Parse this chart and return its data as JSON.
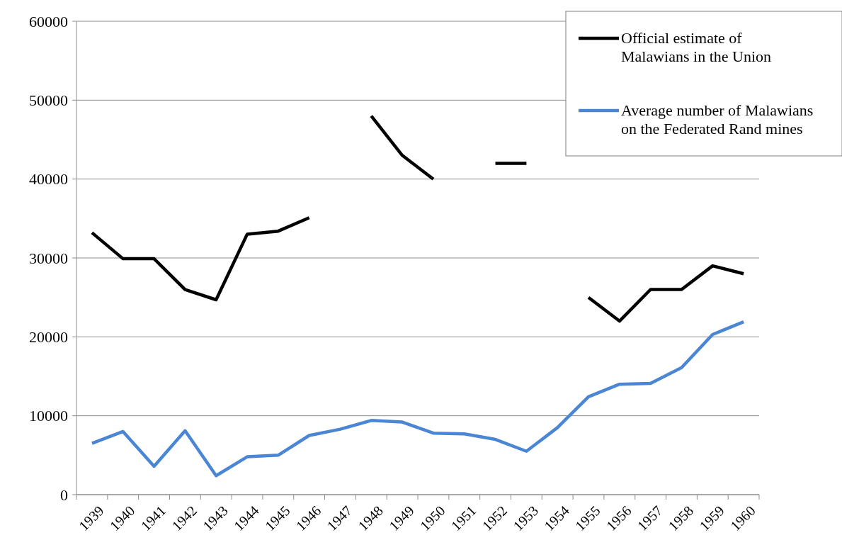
{
  "chart_data": {
    "type": "line",
    "categories": [
      "1939",
      "1940",
      "1941",
      "1942",
      "1943",
      "1944",
      "1945",
      "1946",
      "1947",
      "1948",
      "1949",
      "1950",
      "1951",
      "1952",
      "1953",
      "1954",
      "1955",
      "1956",
      "1957",
      "1958",
      "1959",
      "1960"
    ],
    "series": [
      {
        "name": "Official estimate of Malawians in the Union",
        "color": "#000000",
        "values": [
          33200,
          29900,
          29900,
          26000,
          24700,
          33000,
          33400,
          35100,
          null,
          48000,
          43000,
          40000,
          null,
          42000,
          42000,
          null,
          25000,
          22000,
          26000,
          26000,
          29000,
          28000
        ]
      },
      {
        "name": "Average number of Malawians on the Federated Rand mines",
        "color": "#4a86d4",
        "values": [
          6500,
          8000,
          3600,
          8100,
          2400,
          4800,
          5000,
          7500,
          8300,
          9400,
          9200,
          7800,
          7700,
          7000,
          5500,
          8500,
          12400,
          14000,
          14100,
          16100,
          20300,
          21900
        ]
      }
    ],
    "ylim": [
      0,
      60000
    ],
    "yticks": [
      0,
      10000,
      20000,
      30000,
      40000,
      50000,
      60000
    ],
    "grid": "y",
    "legend": "top right",
    "marker": "none",
    "line_style": "solid"
  }
}
